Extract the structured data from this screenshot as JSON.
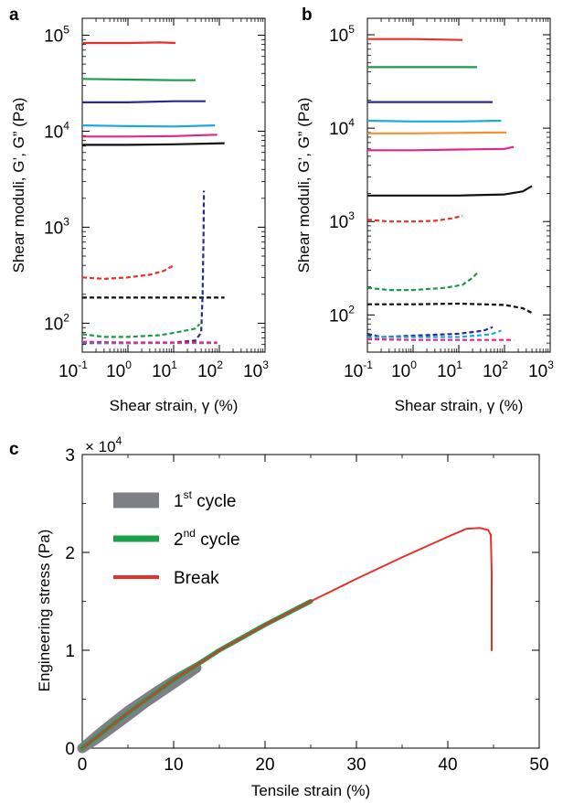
{
  "chart_data": [
    {
      "panel": "a",
      "type": "line",
      "x_scale": "log",
      "y_scale": "log",
      "xlim": [
        0.1,
        1000
      ],
      "ylim": [
        50,
        150000
      ],
      "xlabel": "Shear strain, γ (%)",
      "ylabel": "Shear moduli, G’, G” (Pa)",
      "x_ticks": [
        {
          "value": 0.1,
          "base": "10",
          "exp": "-1"
        },
        {
          "value": 1,
          "base": "10",
          "exp": "0"
        },
        {
          "value": 10,
          "base": "10",
          "exp": "1"
        },
        {
          "value": 100,
          "base": "10",
          "exp": "2"
        },
        {
          "value": 1000,
          "base": "10",
          "exp": "3"
        }
      ],
      "y_ticks": [
        {
          "value": 100,
          "base": "10",
          "exp": "2"
        },
        {
          "value": 1000,
          "base": "10",
          "exp": "3"
        },
        {
          "value": 10000,
          "base": "10",
          "exp": "4"
        },
        {
          "value": 100000,
          "base": "10",
          "exp": "5"
        }
      ],
      "series": [
        {
          "color": "#e8302a",
          "style": "solid",
          "points": [
            [
              0.1,
              83000
            ],
            [
              1,
              83000
            ],
            [
              5,
              84000
            ],
            [
              11,
              83000
            ]
          ]
        },
        {
          "color": "#1a9a4a",
          "style": "solid",
          "points": [
            [
              0.1,
              35000
            ],
            [
              1,
              34500
            ],
            [
              10,
              34000
            ],
            [
              30,
              34000
            ]
          ]
        },
        {
          "color": "#2b2b8f",
          "style": "solid",
          "points": [
            [
              0.1,
              20000
            ],
            [
              1,
              20000
            ],
            [
              10,
              20500
            ],
            [
              50,
              20500
            ]
          ]
        },
        {
          "color": "#1aa8e0",
          "style": "solid",
          "points": [
            [
              0.1,
              11500
            ],
            [
              1,
              11300
            ],
            [
              10,
              11200
            ],
            [
              80,
              11500
            ]
          ]
        },
        {
          "color": "#e6248f",
          "style": "solid",
          "points": [
            [
              0.1,
              8800
            ],
            [
              1,
              8800
            ],
            [
              10,
              8900
            ],
            [
              90,
              9200
            ]
          ]
        },
        {
          "color": "#111111",
          "style": "solid",
          "points": [
            [
              0.1,
              7200
            ],
            [
              1,
              7200
            ],
            [
              10,
              7300
            ],
            [
              130,
              7500
            ]
          ]
        },
        {
          "color": "#e8302a",
          "style": "dashed",
          "points": [
            [
              0.1,
              300
            ],
            [
              0.3,
              290
            ],
            [
              1,
              300
            ],
            [
              3,
              320
            ],
            [
              6,
              350
            ],
            [
              10,
              400
            ]
          ]
        },
        {
          "color": "#111111",
          "style": "dashed",
          "points": [
            [
              0.1,
              185
            ],
            [
              1,
              185
            ],
            [
              10,
              185
            ],
            [
              130,
              185
            ]
          ]
        },
        {
          "color": "#1a9a4a",
          "style": "dashed",
          "points": [
            [
              0.1,
              77
            ],
            [
              0.3,
              72
            ],
            [
              1,
              72
            ],
            [
              5,
              75
            ],
            [
              15,
              82
            ],
            [
              30,
              88
            ],
            [
              37,
              98
            ]
          ]
        },
        {
          "color": "#2b2b8f",
          "style": "dashed",
          "points": [
            [
              0.1,
              62
            ],
            [
              1,
              62
            ],
            [
              10,
              63
            ],
            [
              30,
              66
            ],
            [
              40,
              80
            ],
            [
              43,
              200
            ],
            [
              45,
              800
            ],
            [
              46,
              2400
            ]
          ]
        },
        {
          "color": "#1aa8e0",
          "style": "dashed",
          "points": [
            [
              0.1,
              63
            ],
            [
              1,
              62
            ],
            [
              10,
              62
            ],
            [
              90,
              62
            ]
          ]
        },
        {
          "color": "#e6248f",
          "style": "dashed",
          "points": [
            [
              0.1,
              64
            ],
            [
              1,
              63
            ],
            [
              10,
              63
            ],
            [
              90,
              63
            ]
          ]
        }
      ]
    },
    {
      "panel": "b",
      "type": "line",
      "x_scale": "log",
      "y_scale": "log",
      "xlim": [
        0.1,
        1000
      ],
      "ylim": [
        40,
        150000
      ],
      "xlabel": "Shear strain, γ (%)",
      "ylabel": "Shear moduli, G’, G” (Pa)",
      "x_ticks": [
        {
          "value": 0.1,
          "base": "10",
          "exp": "-1"
        },
        {
          "value": 1,
          "base": "10",
          "exp": "0"
        },
        {
          "value": 10,
          "base": "10",
          "exp": "1"
        },
        {
          "value": 100,
          "base": "10",
          "exp": "2"
        },
        {
          "value": 1000,
          "base": "10",
          "exp": "3"
        }
      ],
      "y_ticks": [
        {
          "value": 100,
          "base": "10",
          "exp": "2"
        },
        {
          "value": 1000,
          "base": "10",
          "exp": "3"
        },
        {
          "value": 10000,
          "base": "10",
          "exp": "4"
        },
        {
          "value": 100000,
          "base": "10",
          "exp": "5"
        }
      ],
      "series": [
        {
          "color": "#e8302a",
          "style": "solid",
          "points": [
            [
              0.1,
              90000
            ],
            [
              1,
              90000
            ],
            [
              12,
              88000
            ]
          ]
        },
        {
          "color": "#1a9a4a",
          "style": "solid",
          "points": [
            [
              0.1,
              45000
            ],
            [
              1,
              45000
            ],
            [
              25,
              45000
            ]
          ]
        },
        {
          "color": "#2b2b8f",
          "style": "solid",
          "points": [
            [
              0.1,
              19000
            ],
            [
              1,
              19000
            ],
            [
              10,
              19000
            ],
            [
              55,
              19000
            ]
          ]
        },
        {
          "color": "#1aa8e0",
          "style": "solid",
          "points": [
            [
              0.1,
              12000
            ],
            [
              1,
              11800
            ],
            [
              10,
              11800
            ],
            [
              85,
              12000
            ]
          ]
        },
        {
          "color": "#f5902a",
          "style": "solid",
          "points": [
            [
              0.1,
              8800
            ],
            [
              1,
              8800
            ],
            [
              10,
              8900
            ],
            [
              110,
              9000
            ]
          ]
        },
        {
          "color": "#e6248f",
          "style": "solid",
          "points": [
            [
              0.1,
              5800
            ],
            [
              1,
              5800
            ],
            [
              10,
              5900
            ],
            [
              100,
              6000
            ],
            [
              160,
              6300
            ]
          ]
        },
        {
          "color": "#111111",
          "style": "solid",
          "points": [
            [
              0.1,
              1900
            ],
            [
              1,
              1900
            ],
            [
              10,
              1900
            ],
            [
              100,
              1950
            ],
            [
              250,
              2100
            ],
            [
              400,
              2400
            ]
          ]
        },
        {
          "color": "#e8302a",
          "style": "dashed",
          "points": [
            [
              0.1,
              1050
            ],
            [
              0.3,
              1000
            ],
            [
              1,
              1000
            ],
            [
              3,
              1020
            ],
            [
              7,
              1080
            ],
            [
              12,
              1150
            ]
          ]
        },
        {
          "color": "#1a9a4a",
          "style": "dashed",
          "points": [
            [
              0.1,
              195
            ],
            [
              0.3,
              185
            ],
            [
              1,
              185
            ],
            [
              5,
              195
            ],
            [
              12,
              210
            ],
            [
              20,
              250
            ],
            [
              25,
              280
            ]
          ]
        },
        {
          "color": "#111111",
          "style": "dashed",
          "points": [
            [
              0.1,
              130
            ],
            [
              1,
              130
            ],
            [
              10,
              132
            ],
            [
              100,
              128
            ],
            [
              250,
              118
            ],
            [
              400,
              105
            ]
          ]
        },
        {
          "color": "#2b2b8f",
          "style": "dashed",
          "points": [
            [
              0.1,
              63
            ],
            [
              0.2,
              58
            ],
            [
              1,
              60
            ],
            [
              10,
              63
            ],
            [
              35,
              68
            ],
            [
              55,
              74
            ]
          ]
        },
        {
          "color": "#1aa8e0",
          "style": "dashed",
          "points": [
            [
              0.1,
              58
            ],
            [
              1,
              58
            ],
            [
              10,
              58
            ],
            [
              50,
              62
            ],
            [
              85,
              68
            ]
          ]
        },
        {
          "color": "#e6248f",
          "style": "dashed",
          "points": [
            [
              0.1,
              55
            ],
            [
              1,
              54
            ],
            [
              10,
              54
            ],
            [
              100,
              54
            ],
            [
              160,
              54
            ]
          ]
        }
      ]
    },
    {
      "panel": "c",
      "type": "line",
      "x_scale": "linear",
      "y_scale": "linear",
      "xlim": [
        0,
        50
      ],
      "ylim": [
        0,
        30000
      ],
      "xlabel": "Tensile strain (%)",
      "ylabel": "Engineering stress (Pa)",
      "y_multiplier_base": "× 10",
      "y_multiplier_exp": "4",
      "x_ticks": [
        0,
        10,
        20,
        30,
        40,
        50
      ],
      "y_ticks": [
        {
          "value": 0,
          "label": "0"
        },
        {
          "value": 10000,
          "label": "1"
        },
        {
          "value": 20000,
          "label": "2"
        },
        {
          "value": 30000,
          "label": "3"
        }
      ],
      "series": [
        {
          "name": "1st cycle",
          "name_main": "1",
          "name_sup": "st",
          "name_tail": " cycle",
          "color": "#7f7f86",
          "width": 11,
          "points": [
            [
              0,
              0
            ],
            [
              2,
              1600
            ],
            [
              5,
              3800
            ],
            [
              8,
              5700
            ],
            [
              10,
              6900
            ],
            [
              12.5,
              8200
            ],
            [
              10,
              6600
            ],
            [
              7,
              4700
            ],
            [
              4,
              2600
            ],
            [
              1.5,
              900
            ],
            [
              0,
              0
            ]
          ]
        },
        {
          "name": "2nd cycle",
          "name_main": "2",
          "name_sup": "nd",
          "name_tail": " cycle",
          "color": "#1aa04a",
          "width": 5,
          "points": [
            [
              0,
              0
            ],
            [
              5,
              3600
            ],
            [
              10,
              7000
            ],
            [
              15,
              10000
            ],
            [
              20,
              12600
            ],
            [
              25,
              15000
            ]
          ]
        },
        {
          "name": "Break",
          "name_main": "Break",
          "name_sup": "",
          "name_tail": "",
          "color": "#e8302a",
          "width": 2,
          "points": [
            [
              0,
              0
            ],
            [
              5,
              3600
            ],
            [
              10,
              7000
            ],
            [
              15,
              10000
            ],
            [
              20,
              12600
            ],
            [
              25,
              15000
            ],
            [
              30,
              17300
            ],
            [
              35,
              19500
            ],
            [
              40,
              21600
            ],
            [
              42,
              22400
            ],
            [
              43.5,
              22500
            ],
            [
              44.4,
              22300
            ],
            [
              44.7,
              21800
            ],
            [
              44.8,
              18000
            ],
            [
              44.8,
              10000
            ]
          ]
        }
      ]
    }
  ]
}
